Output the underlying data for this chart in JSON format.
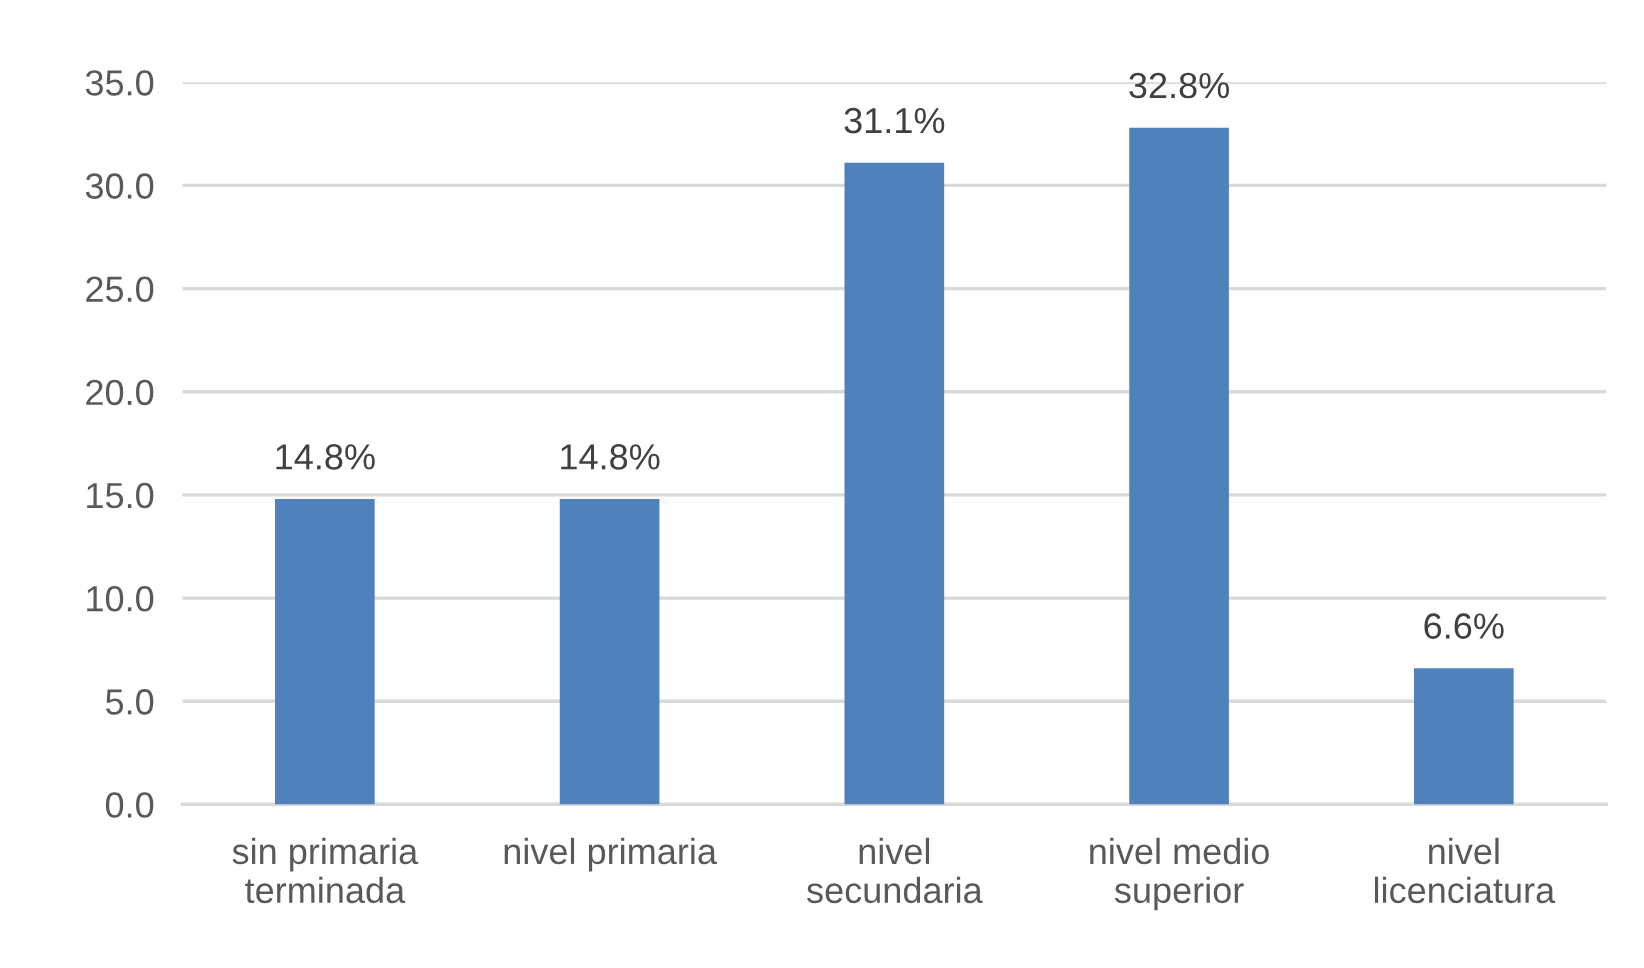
{
  "chart_data": {
    "type": "bar",
    "categories": [
      "sin primaria\nterminada",
      "nivel primaria",
      "nivel\nsecundaria",
      "nivel medio\nsuperior",
      "nivel\nlicenciatura"
    ],
    "values": [
      14.8,
      14.8,
      31.1,
      32.8,
      6.6
    ],
    "value_labels": [
      "14.8%",
      "14.8%",
      "31.1%",
      "32.8%",
      "6.6%"
    ],
    "color": "#4f81bd",
    "ylim": [
      0,
      35
    ],
    "yticks": [
      {
        "value": 0,
        "label": "0.0"
      },
      {
        "value": 5,
        "label": "5.0"
      },
      {
        "value": 10,
        "label": "10.0"
      },
      {
        "value": 15,
        "label": "15.0"
      },
      {
        "value": 20,
        "label": "20.0"
      },
      {
        "value": 25,
        "label": "25.0"
      },
      {
        "value": 30,
        "label": "30.0"
      },
      {
        "value": 35,
        "label": "35.0"
      }
    ],
    "grid": "y"
  }
}
